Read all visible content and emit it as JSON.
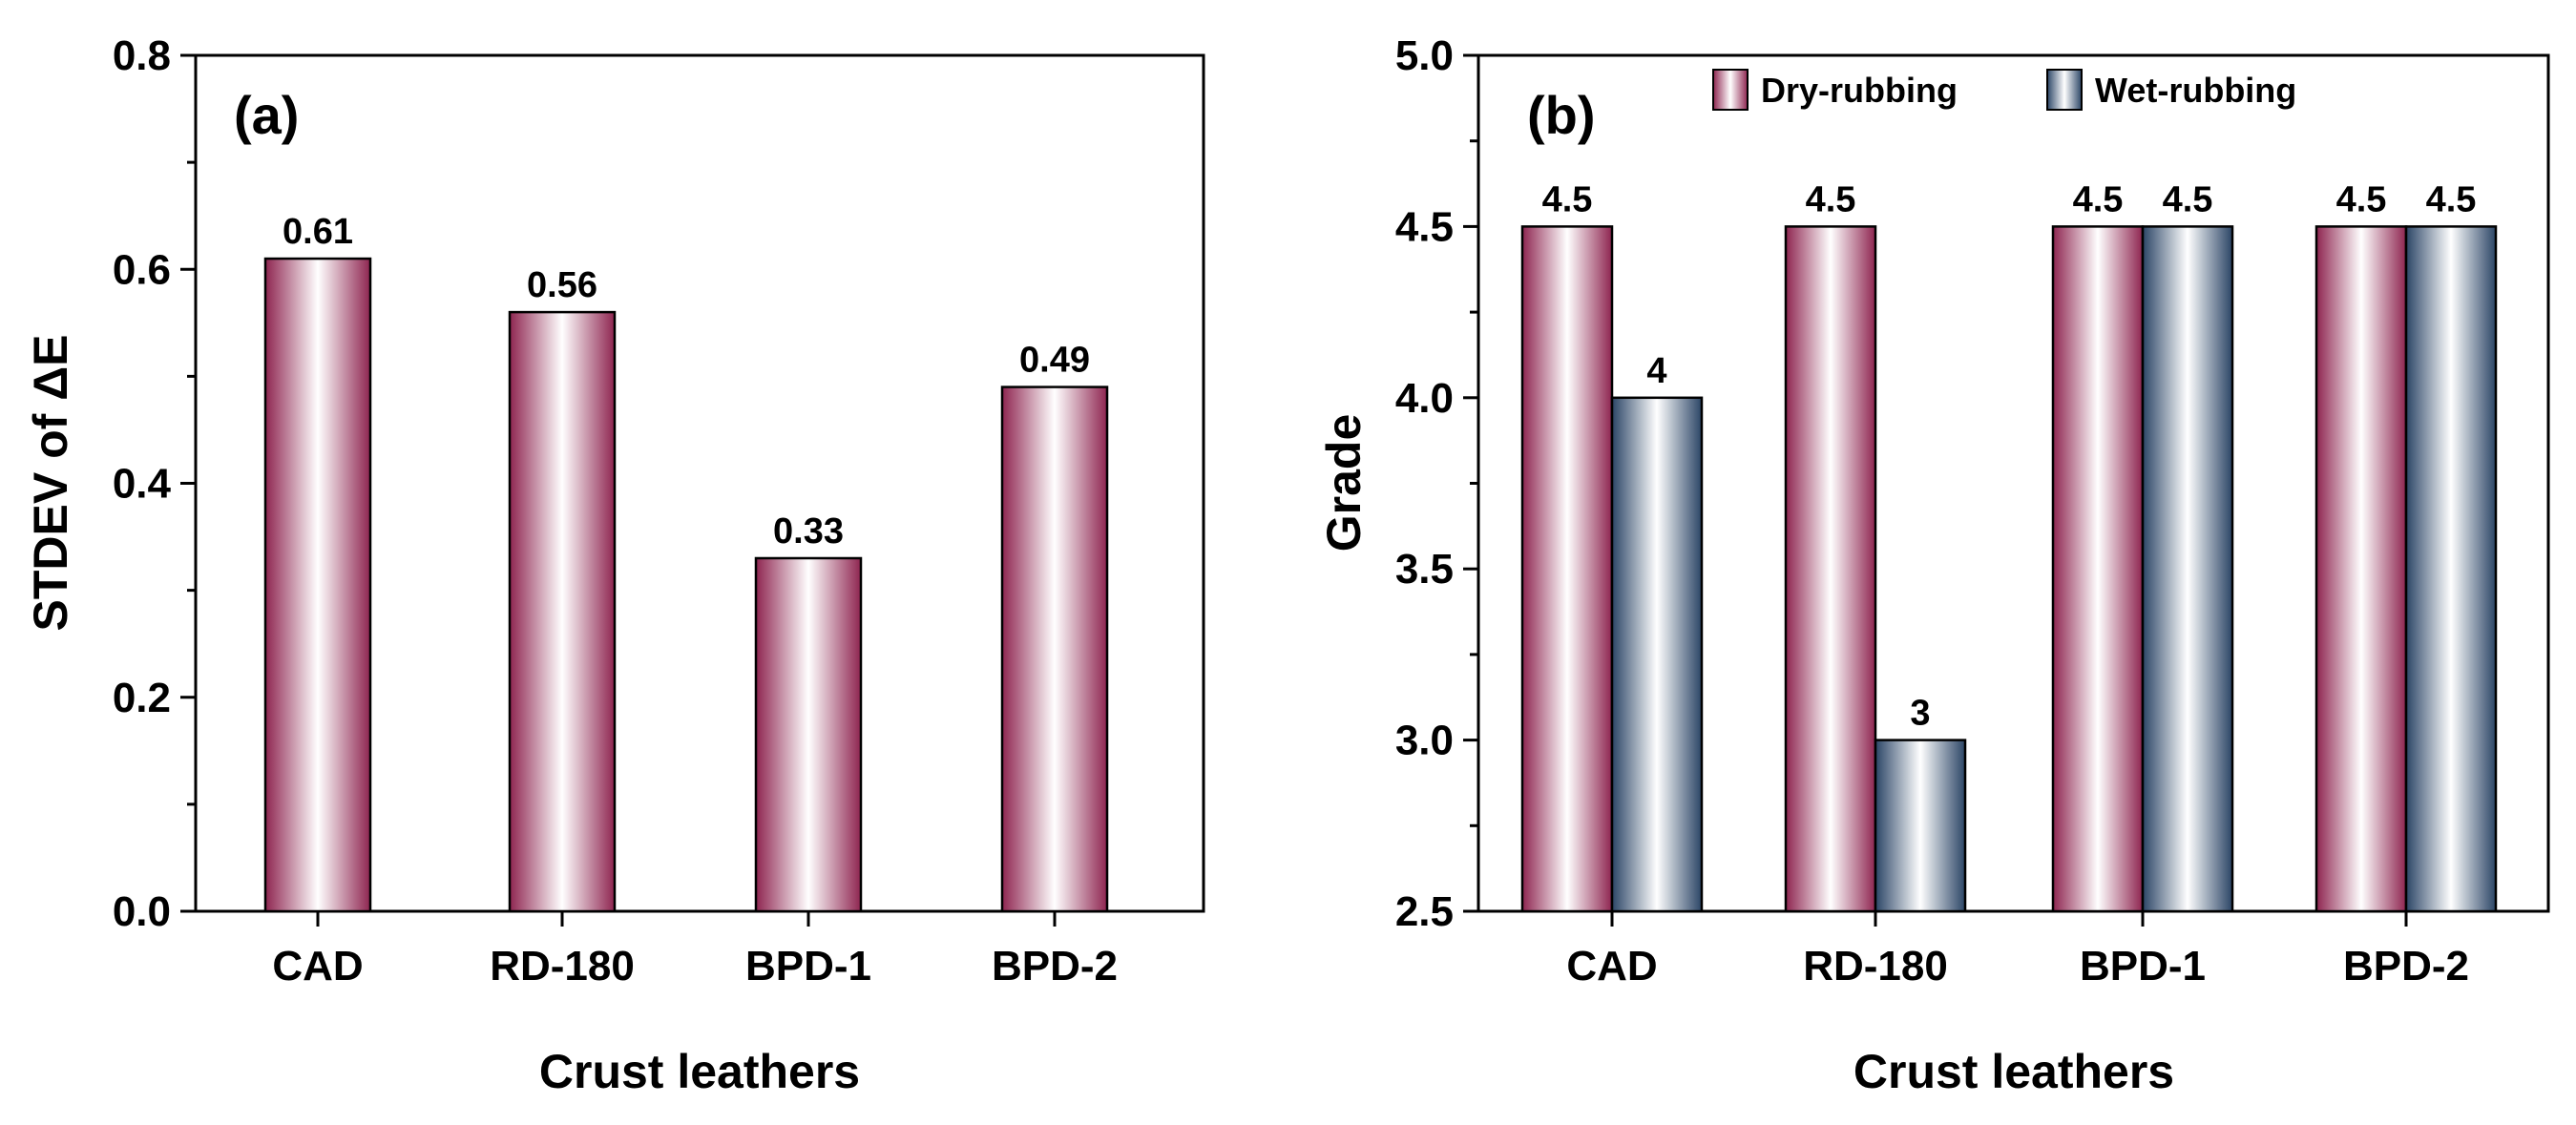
{
  "chart_data": [
    {
      "type": "bar",
      "panel_label": "(a)",
      "title": "",
      "xlabel": "Crust leathers",
      "ylabel": "STDEV of ΔE",
      "categories": [
        "CAD",
        "RD-180",
        "BPD-1",
        "BPD-2"
      ],
      "series": [
        {
          "name": "STDEV of ΔE",
          "values": [
            0.61,
            0.56,
            0.33,
            0.49
          ],
          "labels": [
            "0.61",
            "0.56",
            "0.33",
            "0.49"
          ]
        }
      ],
      "ylim": [
        0,
        0.8
      ],
      "yticks": [
        0.0,
        0.2,
        0.4,
        0.6,
        0.8
      ],
      "ytick_labels": [
        "0.0",
        "0.2",
        "0.4",
        "0.6",
        "0.8"
      ],
      "grid": false,
      "legend": "none"
    },
    {
      "type": "bar",
      "panel_label": "(b)",
      "title": "",
      "xlabel": "Crust leathers",
      "ylabel": "Grade",
      "categories": [
        "CAD",
        "RD-180",
        "BPD-1",
        "BPD-2"
      ],
      "series": [
        {
          "name": "Dry-rubbing",
          "values": [
            4.5,
            4.5,
            4.5,
            4.5
          ],
          "labels": [
            "4.5",
            "4.5",
            "4.5",
            "4.5"
          ]
        },
        {
          "name": "Wet-rubbing",
          "values": [
            4,
            3,
            4.5,
            4.5
          ],
          "labels": [
            "4",
            "3",
            "4.5",
            "4.5"
          ]
        }
      ],
      "ylim": [
        2.5,
        5.0
      ],
      "yticks": [
        2.5,
        3.0,
        3.5,
        4.0,
        4.5,
        5.0
      ],
      "ytick_labels": [
        "2.5",
        "3.0",
        "3.5",
        "4.0",
        "4.5",
        "5.0"
      ],
      "grid": false,
      "legend": "top-center"
    }
  ],
  "colors": {
    "dry_dark": "#8e2550",
    "wet_dark": "#2b4566",
    "bar_light": "#ffffff",
    "axis": "#000000"
  }
}
